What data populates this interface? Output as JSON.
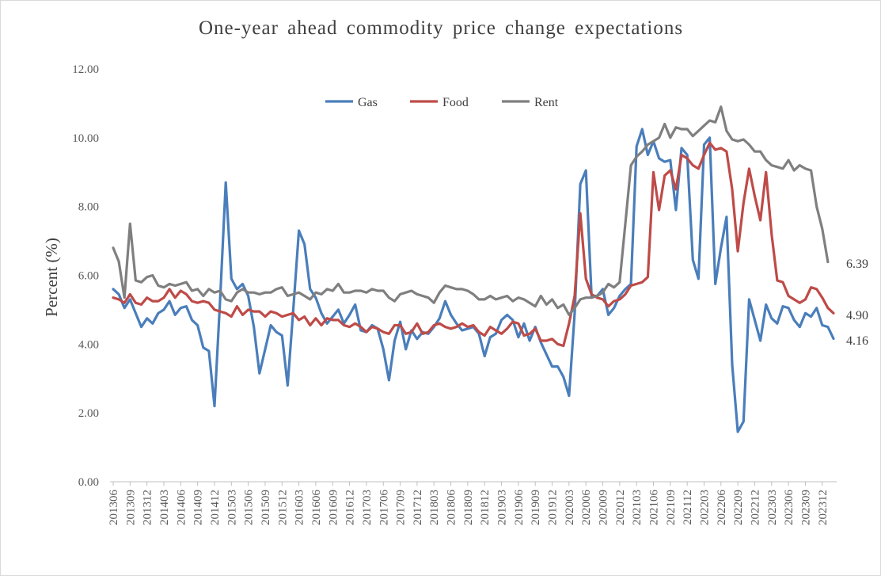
{
  "chart_data": {
    "type": "line",
    "title": "One-year ahead commodity price change expectations",
    "ylabel": "Percent (%)",
    "xlabel": "",
    "ylim": [
      0,
      12
    ],
    "y_ticks": [
      "0.00",
      "2.00",
      "4.00",
      "6.00",
      "8.00",
      "10.00",
      "12.00"
    ],
    "x_ticks": [
      "201306",
      "201309",
      "201312",
      "201403",
      "201406",
      "201409",
      "201412",
      "201503",
      "201506",
      "201509",
      "201512",
      "201603",
      "201606",
      "201609",
      "201612",
      "201703",
      "201706",
      "201709",
      "201712",
      "201803",
      "201806",
      "201809",
      "201812",
      "201903",
      "201906",
      "201909",
      "201912",
      "202003",
      "202006",
      "202009",
      "202012",
      "202103",
      "202106",
      "202109",
      "202112",
      "202203",
      "202206",
      "202209",
      "202212",
      "202303",
      "202306",
      "202309",
      "202312"
    ],
    "grid": false,
    "legend_position": "top-center",
    "series": [
      {
        "name": "Gas",
        "color": "#4a7ebb",
        "end_label": "4.16",
        "values": [
          5.6,
          5.45,
          5.05,
          5.3,
          4.9,
          4.5,
          4.75,
          4.6,
          4.9,
          5.0,
          5.25,
          4.85,
          5.05,
          5.1,
          4.7,
          4.55,
          3.9,
          3.8,
          2.2,
          5.3,
          8.7,
          5.9,
          5.6,
          5.75,
          5.4,
          4.5,
          3.15,
          3.85,
          4.55,
          4.35,
          4.25,
          2.8,
          5.0,
          7.3,
          6.9,
          5.6,
          5.35,
          4.9,
          4.6,
          4.8,
          5.0,
          4.6,
          4.85,
          5.15,
          4.4,
          4.35,
          4.55,
          4.45,
          3.85,
          2.95,
          4.1,
          4.65,
          3.85,
          4.4,
          4.15,
          4.35,
          4.3,
          4.5,
          4.75,
          5.25,
          4.85,
          4.6,
          4.4,
          4.45,
          4.5,
          4.3,
          3.65,
          4.2,
          4.3,
          4.7,
          4.85,
          4.7,
          4.2,
          4.6,
          4.1,
          4.5,
          4.05,
          3.7,
          3.35,
          3.35,
          3.05,
          2.5,
          4.9,
          8.65,
          9.05,
          5.4,
          5.4,
          5.6,
          4.85,
          5.05,
          5.4,
          5.6,
          5.75,
          9.75,
          10.25,
          9.5,
          9.9,
          9.4,
          9.3,
          9.35,
          7.9,
          9.7,
          9.5,
          6.45,
          5.9,
          9.8,
          10.0,
          5.75,
          6.8,
          7.7,
          3.4,
          1.45,
          1.75,
          5.3,
          4.7,
          4.1,
          5.15,
          4.75,
          4.6,
          5.1,
          5.05,
          4.7,
          4.5,
          4.9,
          4.8,
          5.05,
          4.55,
          4.5,
          4.16
        ]
      },
      {
        "name": "Food",
        "color": "#be4b48",
        "end_label": "4.90",
        "values": [
          5.35,
          5.3,
          5.2,
          5.45,
          5.2,
          5.15,
          5.35,
          5.25,
          5.25,
          5.35,
          5.6,
          5.35,
          5.55,
          5.45,
          5.25,
          5.2,
          5.25,
          5.2,
          5.0,
          4.95,
          4.9,
          4.8,
          5.1,
          4.85,
          5.0,
          4.95,
          4.95,
          4.8,
          4.95,
          4.9,
          4.8,
          4.85,
          4.9,
          4.7,
          4.8,
          4.55,
          4.75,
          4.55,
          4.75,
          4.7,
          4.7,
          4.55,
          4.5,
          4.6,
          4.5,
          4.35,
          4.5,
          4.45,
          4.35,
          4.3,
          4.55,
          4.55,
          4.3,
          4.35,
          4.6,
          4.3,
          4.35,
          4.55,
          4.6,
          4.5,
          4.45,
          4.5,
          4.6,
          4.5,
          4.55,
          4.35,
          4.25,
          4.5,
          4.4,
          4.3,
          4.45,
          4.65,
          4.6,
          4.25,
          4.3,
          4.45,
          4.1,
          4.1,
          4.15,
          4.0,
          3.95,
          4.6,
          5.4,
          7.8,
          5.9,
          5.45,
          5.35,
          5.3,
          5.1,
          5.25,
          5.3,
          5.45,
          5.7,
          5.75,
          5.8,
          5.95,
          9.0,
          7.9,
          8.9,
          9.05,
          8.5,
          9.5,
          9.4,
          9.2,
          9.1,
          9.5,
          9.85,
          9.65,
          9.7,
          9.6,
          8.5,
          6.7,
          8.1,
          9.1,
          8.3,
          7.6,
          9.0,
          7.2,
          5.85,
          5.8,
          5.4,
          5.3,
          5.2,
          5.3,
          5.65,
          5.6,
          5.35,
          5.05,
          4.9
        ]
      },
      {
        "name": "Rent",
        "color": "#7f7f7f",
        "end_label": "6.39",
        "values": [
          6.8,
          6.4,
          5.35,
          7.5,
          5.85,
          5.8,
          5.95,
          6.0,
          5.7,
          5.65,
          5.75,
          5.7,
          5.75,
          5.8,
          5.55,
          5.6,
          5.4,
          5.6,
          5.5,
          5.55,
          5.3,
          5.25,
          5.5,
          5.6,
          5.5,
          5.5,
          5.45,
          5.5,
          5.5,
          5.6,
          5.65,
          5.4,
          5.45,
          5.5,
          5.4,
          5.3,
          5.5,
          5.45,
          5.6,
          5.55,
          5.75,
          5.5,
          5.5,
          5.55,
          5.55,
          5.5,
          5.6,
          5.55,
          5.55,
          5.35,
          5.25,
          5.45,
          5.5,
          5.55,
          5.45,
          5.4,
          5.35,
          5.2,
          5.5,
          5.7,
          5.65,
          5.6,
          5.6,
          5.55,
          5.45,
          5.3,
          5.3,
          5.4,
          5.3,
          5.35,
          5.4,
          5.25,
          5.35,
          5.3,
          5.2,
          5.1,
          5.4,
          5.15,
          5.3,
          5.05,
          5.15,
          4.85,
          5.05,
          5.3,
          5.35,
          5.35,
          5.4,
          5.5,
          5.75,
          5.65,
          5.8,
          7.5,
          9.2,
          9.45,
          9.6,
          9.8,
          9.9,
          10.0,
          10.4,
          10.0,
          10.3,
          10.25,
          10.25,
          10.05,
          10.2,
          10.35,
          10.5,
          10.45,
          10.9,
          10.2,
          9.95,
          9.9,
          9.95,
          9.8,
          9.6,
          9.6,
          9.35,
          9.2,
          9.15,
          9.1,
          9.35,
          9.05,
          9.2,
          9.1,
          9.05,
          8.0,
          7.35,
          6.39
        ]
      }
    ]
  }
}
